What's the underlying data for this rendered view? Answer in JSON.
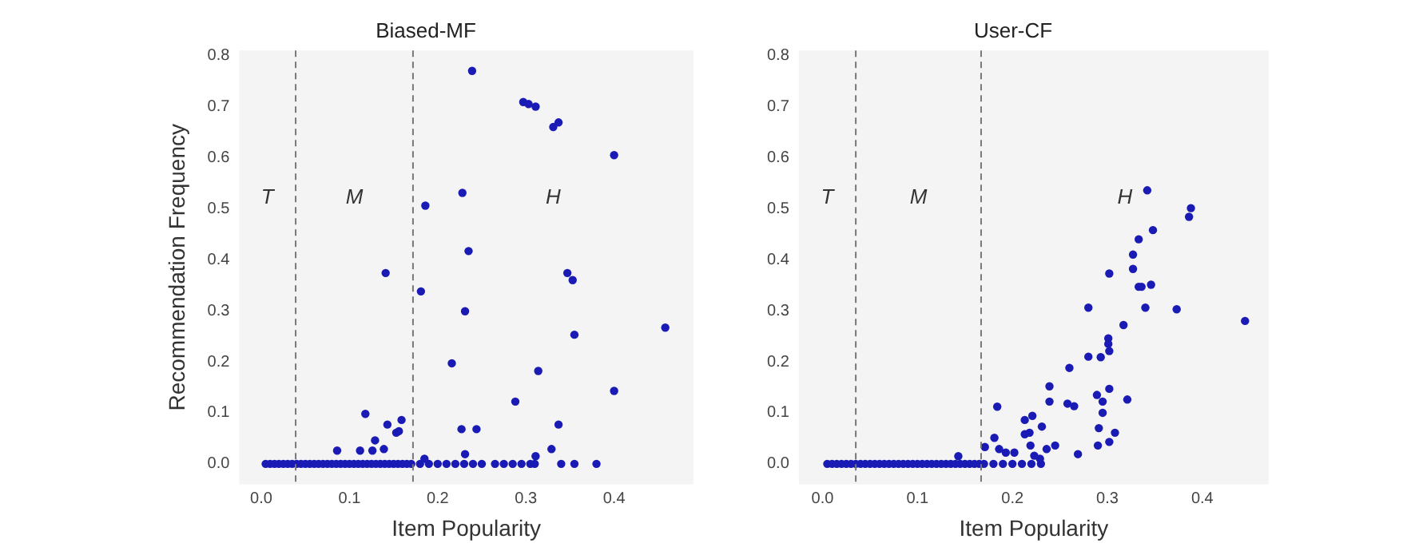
{
  "chart_data": [
    {
      "type": "scatter",
      "title": "Biased-MF",
      "xlabel": "Item Popularity",
      "ylabel": "Recommendation Frequency",
      "marker": "circle",
      "legend": false,
      "grid": false,
      "xlim": [
        -0.025,
        0.49
      ],
      "xticks": [
        {
          "value": 0,
          "label": "0.0"
        },
        0.1,
        0.2,
        0.3,
        0.4
      ],
      "ylim": [
        -0.04,
        0.81
      ],
      "yticks": [
        {
          "value": 0,
          "label": "0.0"
        },
        0.1,
        0.2,
        0.3,
        0.4,
        0.5,
        0.6,
        0.7,
        0.8
      ],
      "ref_lines": [
        {
          "axis": "x",
          "value": 0.039,
          "color": "#777777",
          "line_style": "dashed"
        },
        {
          "axis": "x",
          "value": 0.172,
          "color": "#777777",
          "line_style": "dashed"
        }
      ],
      "annotations": [
        "T",
        "M",
        "H"
      ],
      "series": [
        {
          "color": "#1a1ab4",
          "x": [
            0.005,
            0.01,
            0.015,
            0.02,
            0.025,
            0.03,
            0.035,
            0.04,
            0.045,
            0.05,
            0.055,
            0.06,
            0.065,
            0.07,
            0.075,
            0.08,
            0.085,
            0.09,
            0.095,
            0.1,
            0.105,
            0.11,
            0.115,
            0.12,
            0.125,
            0.13,
            0.135,
            0.14,
            0.145,
            0.15,
            0.155,
            0.16,
            0.165,
            0.17,
            0.18,
            0.19,
            0.2,
            0.21,
            0.22,
            0.23,
            0.24,
            0.25,
            0.265,
            0.275,
            0.285,
            0.295,
            0.305,
            0.31,
            0.34,
            0.355,
            0.38,
            0.239,
            0.297,
            0.303,
            0.311,
            0.331,
            0.337,
            0.4,
            0.186,
            0.228,
            0.235,
            0.141,
            0.181,
            0.231,
            0.347,
            0.353,
            0.355,
            0.458,
            0.216,
            0.314,
            0.4,
            0.288,
            0.118,
            0.159,
            0.143,
            0.153,
            0.156,
            0.129,
            0.227,
            0.244,
            0.337,
            0.086,
            0.112,
            0.126,
            0.139,
            0.329,
            0.231,
            0.311,
            0.185
          ],
          "values": [
            0,
            0,
            0,
            0,
            0,
            0,
            0,
            0,
            0,
            0,
            0,
            0,
            0,
            0,
            0,
            0,
            0,
            0,
            0,
            0,
            0,
            0,
            0,
            0,
            0,
            0,
            0,
            0,
            0,
            0,
            0,
            0,
            0,
            0,
            0,
            0,
            0,
            0,
            0,
            0,
            0,
            0,
            0,
            0,
            0,
            0,
            0,
            0,
            0,
            0,
            0,
            0.77,
            0.709,
            0.705,
            0.7,
            0.66,
            0.669,
            0.605,
            0.506,
            0.531,
            0.417,
            0.374,
            0.338,
            0.299,
            0.374,
            0.36,
            0.253,
            0.267,
            0.197,
            0.182,
            0.143,
            0.122,
            0.098,
            0.086,
            0.077,
            0.061,
            0.064,
            0.046,
            0.068,
            0.068,
            0.077,
            0.026,
            0.026,
            0.026,
            0.029,
            0.029,
            0.019,
            0.015,
            0.01
          ]
        }
      ]
    },
    {
      "type": "scatter",
      "title": "User-CF",
      "xlabel": "Item Popularity",
      "marker": "circle",
      "legend": false,
      "grid": false,
      "xlim": [
        -0.025,
        0.47
      ],
      "xticks": [
        {
          "value": 0,
          "label": "0.0"
        },
        0.1,
        0.2,
        0.3,
        0.4
      ],
      "ylim": [
        -0.04,
        0.81
      ],
      "yticks": [
        {
          "value": 0,
          "label": "0.0"
        },
        0.1,
        0.2,
        0.3,
        0.4,
        0.5,
        0.6,
        0.7,
        0.8
      ],
      "ref_lines": [
        {
          "axis": "x",
          "value": 0.035,
          "color": "#777777",
          "line_style": "dashed"
        },
        {
          "axis": "x",
          "value": 0.167,
          "color": "#777777",
          "line_style": "dashed"
        }
      ],
      "annotations": [
        "T",
        "M",
        "H"
      ],
      "series": [
        {
          "color": "#1a1ab4",
          "x": [
            0.005,
            0.01,
            0.015,
            0.02,
            0.025,
            0.03,
            0.035,
            0.04,
            0.045,
            0.05,
            0.055,
            0.06,
            0.065,
            0.07,
            0.075,
            0.08,
            0.085,
            0.09,
            0.095,
            0.1,
            0.105,
            0.11,
            0.115,
            0.12,
            0.125,
            0.13,
            0.135,
            0.14,
            0.145,
            0.15,
            0.155,
            0.16,
            0.165,
            0.17,
            0.18,
            0.19,
            0.2,
            0.21,
            0.22,
            0.23,
            0.342,
            0.388,
            0.386,
            0.348,
            0.333,
            0.327,
            0.327,
            0.302,
            0.333,
            0.336,
            0.346,
            0.28,
            0.34,
            0.373,
            0.445,
            0.317,
            0.301,
            0.301,
            0.26,
            0.28,
            0.293,
            0.302,
            0.239,
            0.302,
            0.289,
            0.295,
            0.295,
            0.321,
            0.258,
            0.265,
            0.239,
            0.184,
            0.221,
            0.213,
            0.218,
            0.213,
            0.291,
            0.308,
            0.302,
            0.231,
            0.181,
            0.171,
            0.245,
            0.236,
            0.29,
            0.269,
            0.186,
            0.193,
            0.202,
            0.219,
            0.223,
            0.229,
            0.143
          ],
          "values": [
            0,
            0,
            0,
            0,
            0,
            0,
            0,
            0,
            0,
            0,
            0,
            0,
            0,
            0,
            0,
            0,
            0,
            0,
            0,
            0,
            0,
            0,
            0,
            0,
            0,
            0,
            0,
            0,
            0,
            0,
            0,
            0,
            0,
            0,
            0,
            0,
            0,
            0,
            0,
            0,
            0.536,
            0.501,
            0.484,
            0.458,
            0.44,
            0.41,
            0.382,
            0.373,
            0.347,
            0.347,
            0.351,
            0.306,
            0.306,
            0.303,
            0.28,
            0.272,
            0.246,
            0.235,
            0.188,
            0.21,
            0.209,
            0.221,
            0.152,
            0.147,
            0.135,
            0.122,
            0.1,
            0.126,
            0.118,
            0.113,
            0.122,
            0.112,
            0.094,
            0.086,
            0.061,
            0.058,
            0.07,
            0.061,
            0.043,
            0.073,
            0.051,
            0.033,
            0.036,
            0.029,
            0.036,
            0.019,
            0.029,
            0.022,
            0.022,
            0.036,
            0.016,
            0.01,
            0.015
          ]
        }
      ]
    }
  ]
}
